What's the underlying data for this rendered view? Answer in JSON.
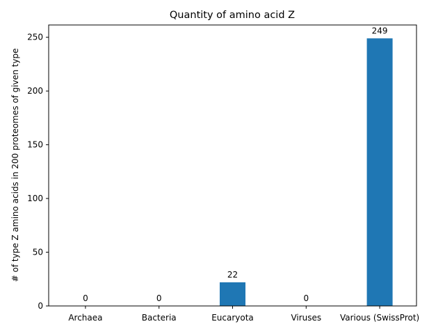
{
  "chart_data": {
    "type": "bar",
    "title": "Quantity of amino acid Z",
    "xlabel": "",
    "ylabel": "# of type Z amino acids in 200 proteomes of given type",
    "categories": [
      "Archaea",
      "Bacteria",
      "Eucaryota",
      "Viruses",
      "Various (SwissProt)"
    ],
    "values": [
      0,
      0,
      22,
      0,
      249
    ],
    "data_labels": [
      "0",
      "0",
      "22",
      "0",
      "249"
    ],
    "ylim": [
      0,
      261.45
    ],
    "yticks": [
      0,
      50,
      100,
      150,
      200,
      250
    ],
    "grid": false,
    "legend": "none",
    "bar_color": "#1f77b4"
  }
}
